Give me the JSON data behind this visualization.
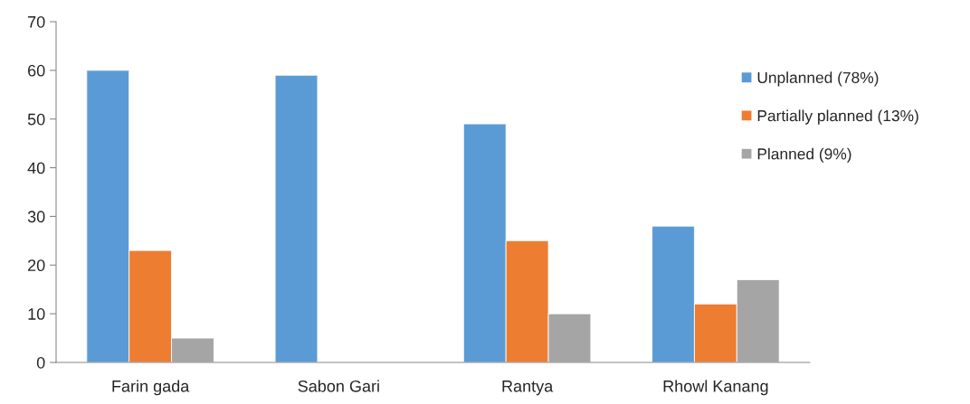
{
  "chart_data": {
    "type": "bar",
    "categories": [
      "Farin gada",
      "Sabon Gari",
      "Rantya",
      "Rhowl Kanang"
    ],
    "series": [
      {
        "name": "Unplanned (78%)",
        "color": "#5b9bd5",
        "values": [
          60,
          59,
          49,
          28
        ]
      },
      {
        "name": "Partially planned (13%)",
        "color": "#ed7d31",
        "values": [
          23,
          null,
          25,
          12
        ]
      },
      {
        "name": "Planned (9%)",
        "color": "#a5a5a5",
        "values": [
          5,
          null,
          10,
          17
        ]
      }
    ],
    "ylim": [
      0,
      70
    ],
    "yticks": [
      0,
      10,
      20,
      30,
      40,
      50,
      60,
      70
    ],
    "grid": false,
    "legend": "right"
  }
}
